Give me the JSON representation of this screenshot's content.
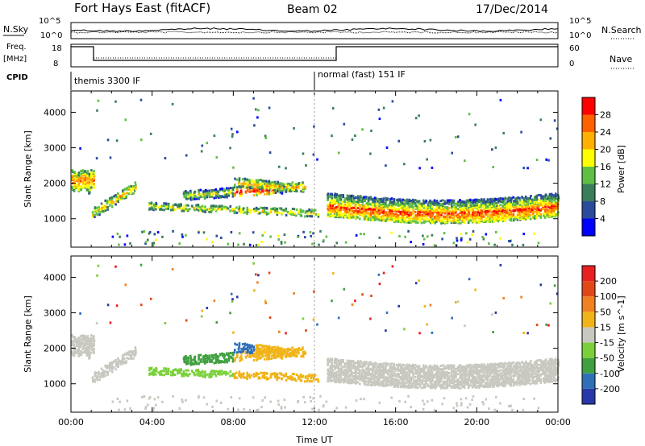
{
  "header": {
    "station": "Fort Hays East (fitACF)",
    "beam": "Beam 02",
    "date": "17/Dec/2014"
  },
  "left_labels": {
    "nsky": "N.Sky",
    "freq": "Freq.",
    "mhz": "[MHz]",
    "cpid": "CPID"
  },
  "right_labels": {
    "nsearch": "N.Search",
    "nave": "Nave"
  },
  "noise_panel": {
    "left_ticks": [
      "10^5",
      "10^0"
    ],
    "right_ticks": [
      "10^5",
      "10^0"
    ]
  },
  "freq_panel": {
    "left_ticks": [
      "18",
      "8"
    ],
    "right_ticks": [
      "60",
      "0"
    ]
  },
  "cpid_panel": {
    "mode1": "themis 3300 IF",
    "mode2": "normal (fast) 151 IF"
  },
  "colors": {
    "power": [
      "#0000ff",
      "#2a4a9c",
      "#3a7d5a",
      "#5fbf45",
      "#ffff00",
      "#ffb000",
      "#ff6000",
      "#ff0000"
    ],
    "velocity": [
      "#2838a8",
      "#2f6fb8",
      "#3fa040",
      "#7bd03a",
      "#c8c8c0",
      "#f0b418",
      "#f08020",
      "#e04818",
      "#e82020"
    ]
  },
  "chart_data": [
    {
      "type": "heatmap",
      "title": "",
      "xlabel": "",
      "ylabel": "Slant Range [km]",
      "x_ticks": [
        "00:00",
        "04:00",
        "08:00",
        "12:00",
        "16:00",
        "20:00",
        "00:00"
      ],
      "y_ticks": [
        "1000",
        "2000",
        "3000",
        "4000"
      ],
      "xlim_hours": [
        0,
        24
      ],
      "ylim_km": [
        200,
        4600
      ],
      "colorbar": {
        "label": "Power [dB]",
        "ticks": [
          "4",
          "8",
          "12",
          "16",
          "20",
          "24",
          "28"
        ]
      }
    },
    {
      "type": "heatmap",
      "title": "",
      "xlabel": "Time UT",
      "ylabel": "Slant Range [km]",
      "x_ticks": [
        "00:00",
        "04:00",
        "08:00",
        "12:00",
        "16:00",
        "20:00",
        "00:00"
      ],
      "y_ticks": [
        "1000",
        "2000",
        "3000",
        "4000"
      ],
      "xlim_hours": [
        0,
        24
      ],
      "ylim_km": [
        200,
        4600
      ],
      "colorbar": {
        "label": "Velocity [m s^-1]",
        "ticks": [
          "200",
          "100",
          "50",
          "15",
          "-15",
          "-50",
          "-100",
          "-200"
        ]
      }
    }
  ]
}
